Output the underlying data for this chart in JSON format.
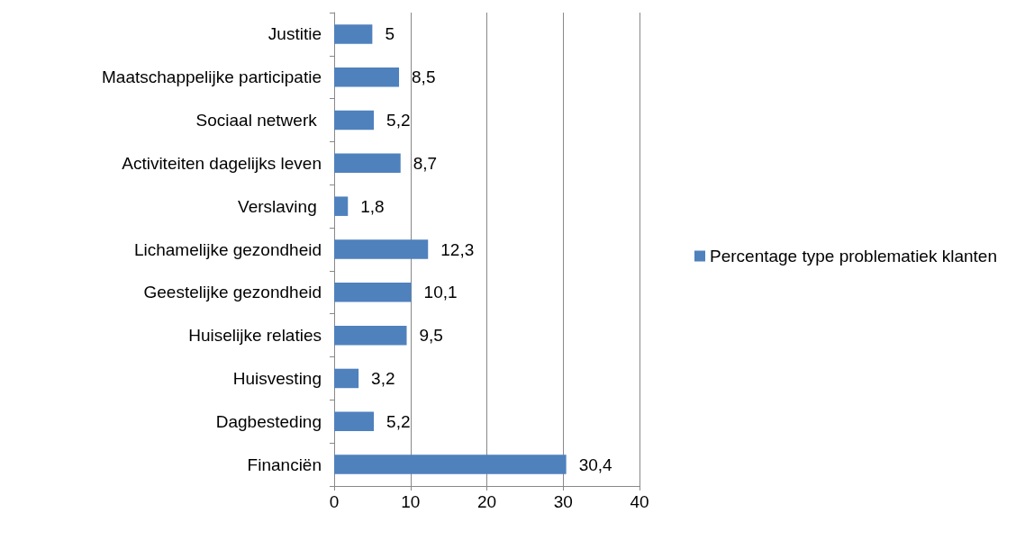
{
  "chart_data": {
    "type": "bar",
    "orientation": "horizontal",
    "categories": [
      "Justitie",
      "Maatschappelijke participatie",
      "Sociaal netwerk ",
      "Activiteiten dagelijks leven",
      "Verslaving ",
      "Lichamelijke gezondheid",
      "Geestelijke gezondheid",
      "Huiselijke relaties",
      "Huisvesting",
      "Dagbesteding",
      "Financiën"
    ],
    "series": [
      {
        "name": "Percentage type problematiek klanten",
        "color": "#4f81bd",
        "values": [
          5,
          8.5,
          5.2,
          8.7,
          1.8,
          12.3,
          10.1,
          9.5,
          3.2,
          5.2,
          30.4
        ],
        "value_labels": [
          "5",
          "8,5",
          "5,2",
          "8,7",
          "1,8",
          "12,3",
          "10,1",
          "9,5",
          "3,2",
          "5,2",
          "30,4"
        ]
      }
    ],
    "xlim": [
      0,
      40
    ],
    "xticks": [
      0,
      10,
      20,
      30,
      40
    ],
    "grid": "x",
    "legend": "right"
  }
}
